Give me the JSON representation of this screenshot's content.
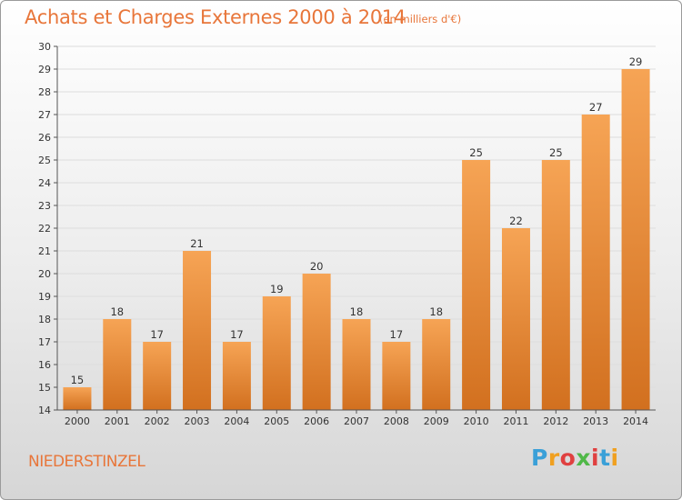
{
  "header": {
    "title": "Achats et Charges Externes 2000 à 2014",
    "subtitle": "(en milliers d'€)"
  },
  "footer": {
    "commune": "NIEDERSTINZEL",
    "logo": {
      "letters": [
        "P",
        "r",
        "o",
        "x",
        "i",
        "t",
        "i"
      ],
      "colors": [
        "#3aa0d8",
        "#f0a020",
        "#e04040",
        "#50b848",
        "#e04040",
        "#3aa0d8",
        "#f0a020"
      ]
    }
  },
  "colors": {
    "bar_light": "#f6a455",
    "bar_dark": "#d2701f",
    "axis": "#555555",
    "text": "#333333",
    "grid": "#dddddd"
  },
  "chart_data": {
    "type": "bar",
    "title": "Achats et Charges Externes 2000 à 2014",
    "subtitle": "(en milliers d'€)",
    "categories": [
      "2000",
      "2001",
      "2002",
      "2003",
      "2004",
      "2005",
      "2006",
      "2007",
      "2008",
      "2009",
      "2010",
      "2011",
      "2012",
      "2013",
      "2014"
    ],
    "values": [
      15,
      18,
      17,
      21,
      17,
      19,
      20,
      18,
      17,
      18,
      25,
      22,
      25,
      27,
      29
    ],
    "data_labels": [
      "15",
      "18",
      "17",
      "21",
      "17",
      "19",
      "20",
      "18",
      "17",
      "18",
      "25",
      "22",
      "25",
      "27",
      "29"
    ],
    "ylim": [
      14,
      30
    ],
    "yticks": [
      "14",
      "15",
      "16",
      "17",
      "18",
      "19",
      "20",
      "21",
      "22",
      "23",
      "24",
      "25",
      "26",
      "27",
      "28",
      "29",
      "30"
    ],
    "xlabel": "",
    "ylabel": "",
    "grid": true
  }
}
